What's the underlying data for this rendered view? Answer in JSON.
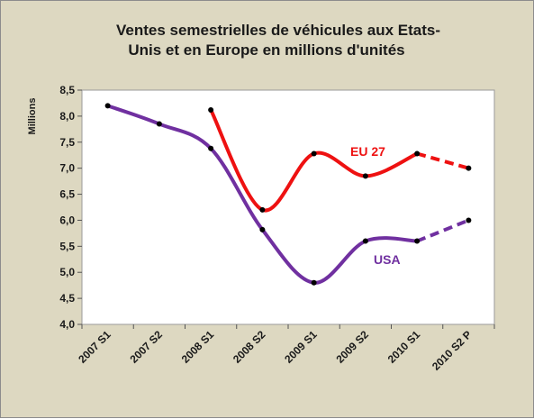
{
  "chart_data": {
    "type": "line",
    "title_lines": [
      "Ventes semestrielles de véhicules aux Etats-",
      "Unis et en Europe en millions d'unités"
    ],
    "ylabel": "Millions",
    "xlabel": "",
    "categories": [
      "2007 S1",
      "2007 S2",
      "2008 S1",
      "2008 S2",
      "2009 S1",
      "2009 S2",
      "2010 S1",
      "2010 S2 P"
    ],
    "ylim": [
      4.0,
      8.5
    ],
    "yticks": [
      "4,0",
      "4,5",
      "5,0",
      "5,5",
      "6,0",
      "6,5",
      "7,0",
      "7,5",
      "8,0",
      "8,5"
    ],
    "ytick_values": [
      4.0,
      4.5,
      5.0,
      5.5,
      6.0,
      6.5,
      7.0,
      7.5,
      8.0,
      8.5
    ],
    "grid": false,
    "series": [
      {
        "name": "EU 27",
        "color": "#ee1111",
        "values": [
          null,
          null,
          8.12,
          6.2,
          7.28,
          6.85,
          7.28,
          7.0
        ],
        "forecast_from_index": 6
      },
      {
        "name": "USA",
        "color": "#7030a0",
        "values": [
          8.2,
          7.85,
          7.38,
          5.82,
          4.8,
          5.6,
          5.6,
          6.0
        ],
        "forecast_from_index": 6
      }
    ],
    "point_color": "#000000"
  }
}
